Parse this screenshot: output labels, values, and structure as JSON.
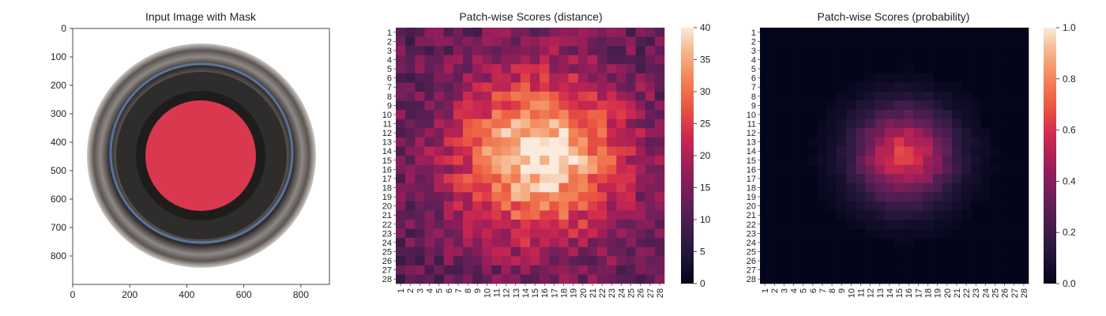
{
  "chart_data": [
    {
      "type": "image",
      "title": "Input Image with Mask",
      "xticks": [
        0,
        200,
        400,
        600,
        800
      ],
      "yticks": [
        0,
        100,
        200,
        300,
        400,
        500,
        600,
        700,
        800
      ],
      "xlim": [
        0,
        900
      ],
      "ylim": [
        900,
        0
      ],
      "colors": {
        "mask": "#d9384f",
        "ring_dark": "#2e2b2b",
        "ring_mid": "#6b6562",
        "ring_light": "#a9a39f",
        "blue_rim": "#5f7fb0"
      }
    },
    {
      "type": "heatmap",
      "title": "Patch-wise Scores (distance)",
      "row_labels": [
        "1",
        "2",
        "3",
        "4",
        "5",
        "6",
        "7",
        "8",
        "9",
        "10",
        "11",
        "12",
        "13",
        "14",
        "15",
        "16",
        "17",
        "18",
        "19",
        "20",
        "21",
        "22",
        "23",
        "24",
        "25",
        "26",
        "27",
        "28"
      ],
      "col_labels": [
        "1",
        "2",
        "3",
        "4",
        "5",
        "6",
        "7",
        "8",
        "9",
        "10",
        "11",
        "12",
        "13",
        "14",
        "15",
        "16",
        "17",
        "18",
        "19",
        "20",
        "21",
        "22",
        "23",
        "24",
        "25",
        "26",
        "27",
        "28"
      ],
      "grid_size": 28,
      "model": {
        "baseline": 12,
        "peak": 40,
        "center_row": 14.5,
        "center_col": 15.5,
        "spread": 6.2
      },
      "colorbar": {
        "min": 0,
        "max": 40,
        "ticks": [
          0,
          5,
          10,
          15,
          20,
          25,
          30,
          35,
          40
        ]
      },
      "colormap": "rocket"
    },
    {
      "type": "heatmap",
      "title": "Patch-wise Scores (probability)",
      "row_labels": [
        "1",
        "2",
        "3",
        "4",
        "5",
        "6",
        "7",
        "8",
        "9",
        "10",
        "11",
        "12",
        "13",
        "14",
        "15",
        "16",
        "17",
        "18",
        "19",
        "20",
        "21",
        "22",
        "23",
        "24",
        "25",
        "26",
        "27",
        "28"
      ],
      "col_labels": [
        "1",
        "2",
        "3",
        "4",
        "5",
        "6",
        "7",
        "8",
        "9",
        "10",
        "11",
        "12",
        "13",
        "14",
        "15",
        "16",
        "17",
        "18",
        "19",
        "20",
        "21",
        "22",
        "23",
        "24",
        "25",
        "26",
        "27",
        "28"
      ],
      "grid_size": 28,
      "model": {
        "baseline": 0.0,
        "peak": 0.62,
        "center_row": 14.5,
        "center_col": 15.5,
        "spread": 3.6
      },
      "colorbar": {
        "min": 0.0,
        "max": 1.0,
        "ticks": [
          "0.0",
          "0.2",
          "0.4",
          "0.6",
          "0.8",
          "1.0"
        ]
      },
      "colormap": "rocket"
    }
  ]
}
